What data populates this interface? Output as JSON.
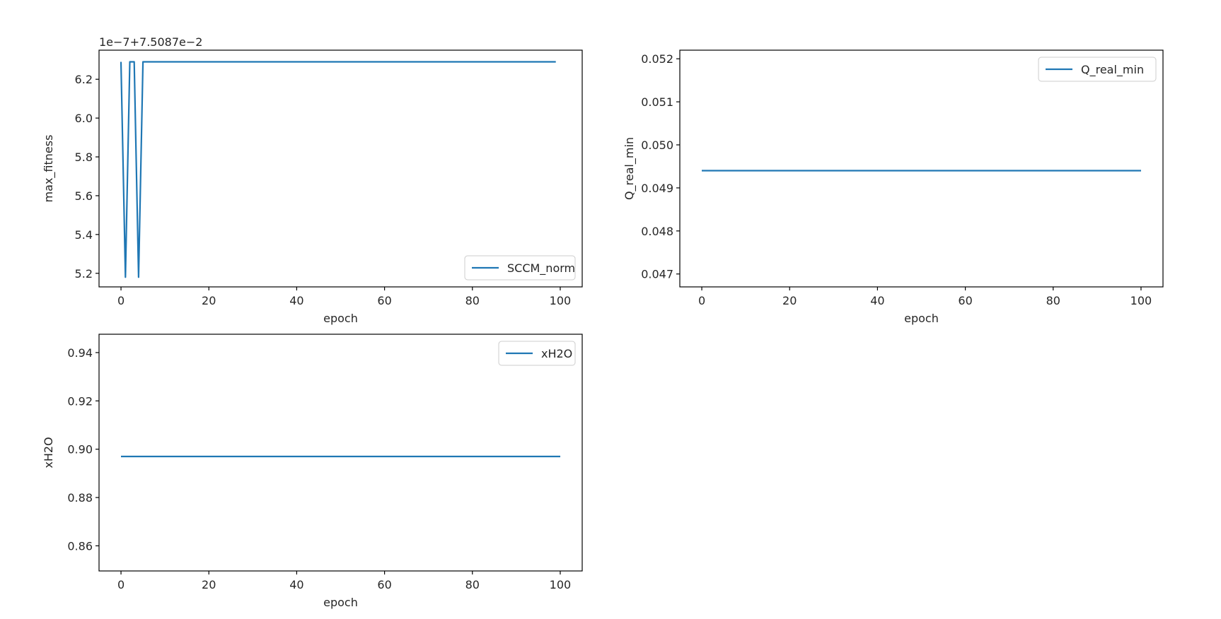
{
  "chart_data": [
    {
      "type": "line",
      "xlabel": "epoch",
      "ylabel": "max_fitness",
      "offset_text": "1e−7+7.5087e−2",
      "xlim": [
        -5,
        105
      ],
      "ylim": [
        5.13,
        6.35
      ],
      "xticks": [
        0,
        20,
        40,
        60,
        80,
        100
      ],
      "xtick_labels": [
        "0",
        "20",
        "40",
        "60",
        "80",
        "100"
      ],
      "yticks": [
        5.2,
        5.4,
        5.6,
        5.8,
        6.0,
        6.2
      ],
      "ytick_labels": [
        "5.2",
        "5.4",
        "5.6",
        "5.8",
        "6.0",
        "6.2"
      ],
      "legend": "bottom-right",
      "grid": false,
      "color": "#1f77b4",
      "series": [
        {
          "name": "SCCM_norm",
          "x": [
            0,
            1,
            2,
            3,
            4,
            5,
            99
          ],
          "y": [
            6.29,
            5.18,
            6.29,
            6.29,
            5.18,
            6.29,
            6.29
          ]
        }
      ]
    },
    {
      "type": "line",
      "xlabel": "epoch",
      "ylabel": "Q_real_min",
      "offset_text": "",
      "xlim": [
        -5,
        105
      ],
      "ylim": [
        0.0467,
        0.0522
      ],
      "xticks": [
        0,
        20,
        40,
        60,
        80,
        100
      ],
      "xtick_labels": [
        "0",
        "20",
        "40",
        "60",
        "80",
        "100"
      ],
      "yticks": [
        0.047,
        0.048,
        0.049,
        0.05,
        0.051,
        0.052
      ],
      "ytick_labels": [
        "0.047",
        "0.048",
        "0.049",
        "0.050",
        "0.051",
        "0.052"
      ],
      "legend": "top-right",
      "grid": false,
      "color": "#1f77b4",
      "series": [
        {
          "name": "Q_real_min",
          "x": [
            0,
            100
          ],
          "y": [
            0.0494,
            0.0494
          ]
        }
      ]
    },
    {
      "type": "line",
      "xlabel": "epoch",
      "ylabel": "xH2O",
      "offset_text": "",
      "xlim": [
        -5,
        105
      ],
      "ylim": [
        0.8496,
        0.9476
      ],
      "xticks": [
        0,
        20,
        40,
        60,
        80,
        100
      ],
      "xtick_labels": [
        "0",
        "20",
        "40",
        "60",
        "80",
        "100"
      ],
      "yticks": [
        0.86,
        0.88,
        0.9,
        0.92,
        0.94
      ],
      "ytick_labels": [
        "0.86",
        "0.88",
        "0.90",
        "0.92",
        "0.94"
      ],
      "legend": "top-right",
      "grid": false,
      "color": "#1f77b4",
      "series": [
        {
          "name": "xH2O",
          "x": [
            0,
            100
          ],
          "y": [
            0.897,
            0.897
          ]
        }
      ]
    }
  ]
}
